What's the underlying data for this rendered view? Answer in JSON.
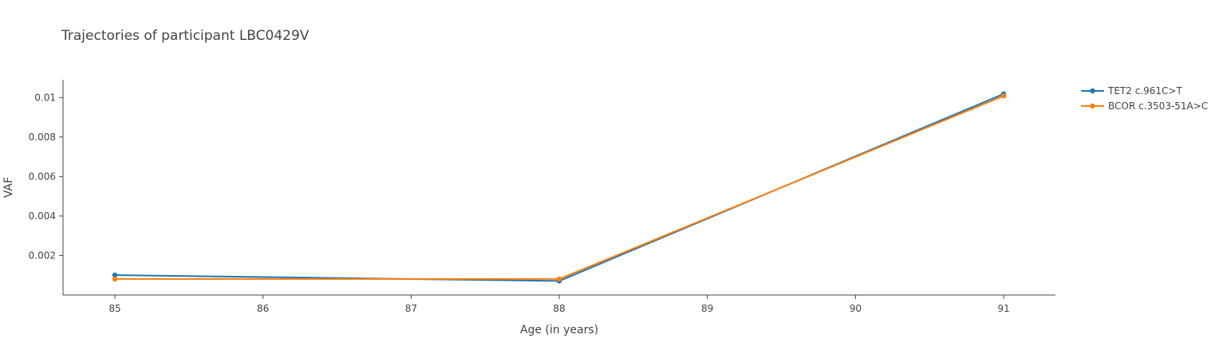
{
  "chart_data": {
    "type": "line",
    "title": "Trajectories of participant LBC0429V",
    "xlabel": "Age (in years)",
    "ylabel": "VAF",
    "x_ticks": [
      "85",
      "86",
      "87",
      "88",
      "89",
      "90",
      "91"
    ],
    "y_ticks": [
      "0.002",
      "0.004",
      "0.006",
      "0.008",
      "0.01"
    ],
    "xlim": [
      84.65,
      91.35
    ],
    "ylim": [
      0.0,
      0.0109
    ],
    "grid": false,
    "legend_position": "top-right",
    "series": [
      {
        "name": "TET2 c.961C>T",
        "color": "#1f77b4",
        "x": [
          85,
          88,
          91
        ],
        "y": [
          0.00101,
          0.00071,
          0.01018
        ]
      },
      {
        "name": "BCOR c.3503-51A>C",
        "color": "#ff7f0e",
        "x": [
          85,
          88,
          91
        ],
        "y": [
          0.00081,
          0.00081,
          0.01008
        ]
      }
    ]
  }
}
